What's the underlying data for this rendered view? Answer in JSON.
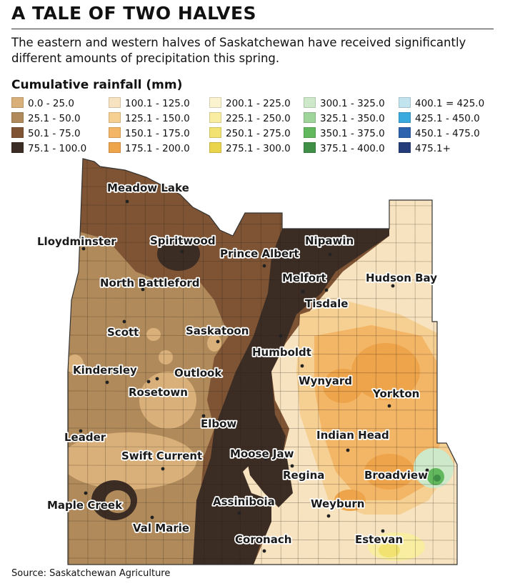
{
  "header": {
    "title": "A TALE OF TWO HALVES",
    "subtitle": "The eastern and western halves of Saskatchewan have received significantly different amounts of precipitation this spring."
  },
  "legend": {
    "title": "Cumulative rainfall (mm)",
    "items": [
      {
        "label": "0.0 - 25.0",
        "color": "#d9b07a"
      },
      {
        "label": "25.1 - 50.0",
        "color": "#b08a5a"
      },
      {
        "label": "50.1 - 75.0",
        "color": "#7e5434"
      },
      {
        "label": "75.1 - 100.0",
        "color": "#3b2c24"
      },
      {
        "label": "100.1 - 125.0",
        "color": "#f7e3bf"
      },
      {
        "label": "125.1 - 150.0",
        "color": "#f6cf92"
      },
      {
        "label": "150.1 - 175.0",
        "color": "#f3b566"
      },
      {
        "label": "175.1 - 200.0",
        "color": "#eea44a"
      },
      {
        "label": "200.1 - 225.0",
        "color": "#fbf3cf"
      },
      {
        "label": "225.1 - 250.0",
        "color": "#f8eda0"
      },
      {
        "label": "250.1 - 275.0",
        "color": "#f1e271"
      },
      {
        "label": "275.1 - 300.0",
        "color": "#ead44c"
      },
      {
        "label": "300.1 - 325.0",
        "color": "#cde9c9"
      },
      {
        "label": "325.1 - 350.0",
        "color": "#9fd49a"
      },
      {
        "label": "350.1 - 375.0",
        "color": "#62b85d"
      },
      {
        "label": "375.1 - 400.0",
        "color": "#3f8f47"
      },
      {
        "label": "400.1 = 425.0",
        "color": "#c2e4ef"
      },
      {
        "label": "425.1 - 450.0",
        "color": "#39a9de"
      },
      {
        "label": "450.1 - 475.0",
        "color": "#2d63ae"
      },
      {
        "label": "475.1+",
        "color": "#243c7a"
      }
    ]
  },
  "map": {
    "cities": [
      {
        "name": "Meadow Lake"
      },
      {
        "name": "Lloydminster"
      },
      {
        "name": "Spiritwood"
      },
      {
        "name": "Prince Albert"
      },
      {
        "name": "Nipawin"
      },
      {
        "name": "North Battleford"
      },
      {
        "name": "Melfort"
      },
      {
        "name": "Hudson Bay"
      },
      {
        "name": "Tisdale"
      },
      {
        "name": "Scott"
      },
      {
        "name": "Saskatoon"
      },
      {
        "name": "Humboldt"
      },
      {
        "name": "Kindersley"
      },
      {
        "name": "Outlook"
      },
      {
        "name": "Wynyard"
      },
      {
        "name": "Rosetown"
      },
      {
        "name": "Yorkton"
      },
      {
        "name": "Elbow"
      },
      {
        "name": "Leader"
      },
      {
        "name": "Indian Head"
      },
      {
        "name": "Moose Jaw"
      },
      {
        "name": "Swift Current"
      },
      {
        "name": "Regina"
      },
      {
        "name": "Broadview"
      },
      {
        "name": "Maple Creek"
      },
      {
        "name": "Assiniboia"
      },
      {
        "name": "Weyburn"
      },
      {
        "name": "Val Marie"
      },
      {
        "name": "Estevan"
      },
      {
        "name": "Coronach"
      }
    ]
  },
  "footer": {
    "source": "Source: Saskatchewan Agriculture"
  }
}
